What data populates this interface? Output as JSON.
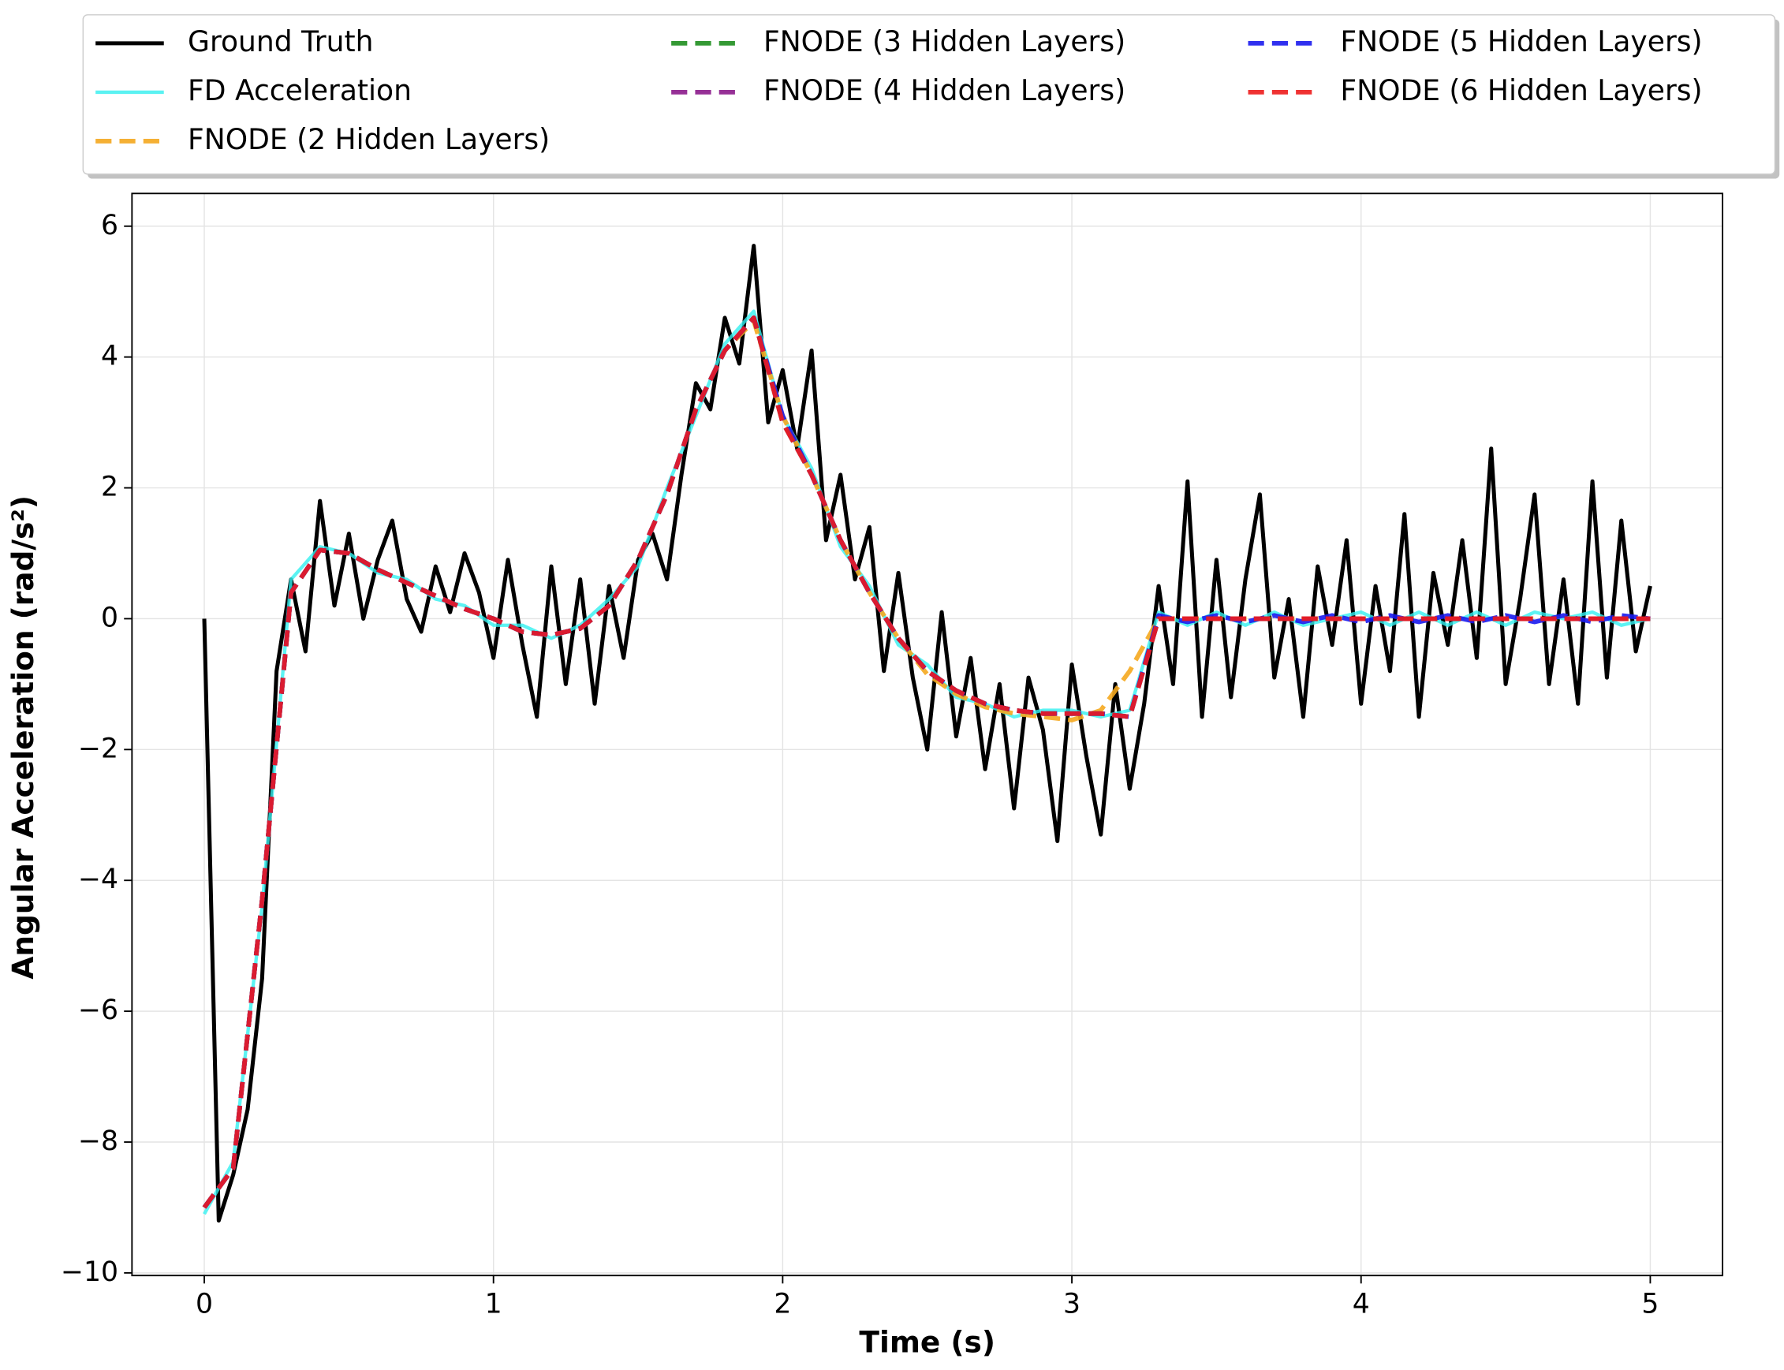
{
  "chart_data": {
    "type": "line",
    "xlabel": "Time (s)",
    "ylabel": "Angular Acceleration (rad/s²)",
    "xlim": [
      -0.25,
      5.25
    ],
    "ylim": [
      -10.04,
      6.5
    ],
    "xticks": [
      0,
      1,
      2,
      3,
      4,
      5
    ],
    "yticks": [
      {
        "value": -10,
        "label": "−10"
      },
      {
        "value": -8,
        "label": "−8"
      },
      {
        "value": -6,
        "label": "−6"
      },
      {
        "value": -4,
        "label": "−4"
      },
      {
        "value": -2,
        "label": "−2"
      },
      0,
      2,
      4,
      6
    ],
    "grid": true,
    "series": [
      {
        "name": "Ground Truth",
        "color": "#000000",
        "linestyle": "solid",
        "x": [
          0,
          0.05,
          0.1,
          0.15,
          0.2,
          0.25,
          0.3,
          0.35,
          0.4,
          0.45,
          0.5,
          0.55,
          0.6,
          0.65,
          0.7,
          0.75,
          0.8,
          0.85,
          0.9,
          0.95,
          1,
          1.05,
          1.1,
          1.15,
          1.2,
          1.25,
          1.3,
          1.35,
          1.4,
          1.45,
          1.5,
          1.55,
          1.6,
          1.65,
          1.7,
          1.75,
          1.8,
          1.85,
          1.9,
          1.95,
          2,
          2.05,
          2.1,
          2.15,
          2.2,
          2.25,
          2.3,
          2.35,
          2.4,
          2.45,
          2.5,
          2.55,
          2.6,
          2.65,
          2.7,
          2.75,
          2.8,
          2.85,
          2.9,
          2.95,
          3,
          3.05,
          3.1,
          3.15,
          3.2,
          3.25,
          3.3,
          3.35,
          3.4,
          3.45,
          3.5,
          3.55,
          3.6,
          3.65,
          3.7,
          3.75,
          3.8,
          3.85,
          3.9,
          3.95,
          4,
          4.05,
          4.1,
          4.15,
          4.2,
          4.25,
          4.3,
          4.35,
          4.4,
          4.45,
          4.5,
          4.55,
          4.6,
          4.65,
          4.7,
          4.75,
          4.8,
          4.85,
          4.9,
          4.95,
          5
        ],
        "values": [
          0,
          -9.2,
          -8.5,
          -7.5,
          -5.5,
          -0.8,
          0.6,
          -0.5,
          1.8,
          0.2,
          1.3,
          0,
          0.9,
          1.5,
          0.3,
          -0.2,
          0.8,
          0.1,
          1,
          0.4,
          -0.6,
          0.9,
          -0.4,
          -1.5,
          0.8,
          -1,
          0.6,
          -1.3,
          0.5,
          -0.6,
          0.9,
          1.3,
          0.6,
          2.2,
          3.6,
          3.2,
          4.6,
          3.9,
          5.7,
          3,
          3.8,
          2.6,
          4.1,
          1.2,
          2.2,
          0.6,
          1.4,
          -0.8,
          0.7,
          -0.9,
          -2,
          0.1,
          -1.8,
          -0.6,
          -2.3,
          -1,
          -2.9,
          -0.9,
          -1.7,
          -3.4,
          -0.7,
          -2.1,
          -3.3,
          -1,
          -2.6,
          -1.3,
          0.5,
          -1,
          2.1,
          -1.5,
          0.9,
          -1.2,
          0.6,
          1.9,
          -0.9,
          0.3,
          -1.5,
          0.8,
          -0.4,
          1.2,
          -1.3,
          0.5,
          -0.8,
          1.6,
          -1.5,
          0.7,
          -0.4,
          1.2,
          -0.6,
          2.6,
          -1,
          0.3,
          1.9,
          -1,
          0.6,
          -1.3,
          2.1,
          -0.9,
          1.5,
          -0.5,
          0.5
        ]
      },
      {
        "name": "FD Acceleration",
        "color": "#33f0f0",
        "linestyle": "solid",
        "x": [
          0,
          0.1,
          0.2,
          0.3,
          0.4,
          0.5,
          0.6,
          0.7,
          0.8,
          0.9,
          1,
          1.1,
          1.2,
          1.3,
          1.4,
          1.5,
          1.6,
          1.7,
          1.8,
          1.9,
          2,
          2.1,
          2.2,
          2.3,
          2.4,
          2.5,
          2.6,
          2.7,
          2.8,
          2.9,
          3,
          3.1,
          3.2,
          3.3,
          3.4,
          3.5,
          3.6,
          3.7,
          3.8,
          3.9,
          4,
          4.1,
          4.2,
          4.3,
          4.4,
          4.5,
          4.6,
          4.7,
          4.8,
          4.9,
          5
        ],
        "values": [
          -9.1,
          -8.3,
          -4.4,
          0.6,
          1.1,
          1,
          0.7,
          0.6,
          0.3,
          0.2,
          -0.1,
          -0.1,
          -0.3,
          -0.1,
          0.3,
          0.8,
          2,
          3.1,
          4.2,
          4.7,
          3.1,
          2.3,
          1.1,
          0.5,
          -0.4,
          -0.7,
          -1.2,
          -1.3,
          -1.5,
          -1.4,
          -1.4,
          -1.5,
          -1.4,
          0.1,
          -0.1,
          0.1,
          -0.1,
          0.1,
          -0.1,
          0,
          0.1,
          -0.1,
          0.1,
          -0.1,
          0.1,
          -0.1,
          0.1,
          0,
          0.1,
          -0.1,
          0
        ]
      },
      {
        "name": "FNODE (2 Hidden Layers)",
        "color": "#f5a81f",
        "linestyle": "dashed",
        "x": [
          0,
          0.1,
          0.2,
          0.3,
          0.4,
          0.5,
          0.6,
          0.7,
          0.8,
          0.9,
          1,
          1.1,
          1.2,
          1.3,
          1.4,
          1.5,
          1.6,
          1.7,
          1.8,
          1.9,
          2,
          2.1,
          2.2,
          2.3,
          2.4,
          2.5,
          2.6,
          2.7,
          2.8,
          2.9,
          3,
          3.1,
          3.2,
          3.3,
          3.4,
          3.5,
          3.6,
          3.7,
          3.8,
          3.9,
          4,
          4.1,
          4.2,
          4.3,
          4.4,
          4.5,
          4.6,
          4.7,
          4.8,
          4.9,
          5
        ],
        "values": [
          -9,
          -8.4,
          -4.3,
          0.4,
          1.05,
          1,
          0.75,
          0.55,
          0.35,
          0.15,
          0,
          -0.2,
          -0.25,
          -0.15,
          0.2,
          0.9,
          1.9,
          3.2,
          4.1,
          4.55,
          3.1,
          2.2,
          1.2,
          0.4,
          -0.3,
          -0.85,
          -1.15,
          -1.35,
          -1.45,
          -1.5,
          -1.55,
          -1.4,
          -0.8,
          0,
          0,
          0,
          0,
          0,
          0,
          0,
          0,
          0,
          0,
          0,
          0,
          0,
          0,
          0,
          0,
          0,
          0
        ]
      },
      {
        "name": "FNODE (3 Hidden Layers)",
        "color": "#1f8f1f",
        "linestyle": "dashed",
        "x": [
          0,
          0.1,
          0.2,
          0.3,
          0.4,
          0.5,
          0.6,
          0.7,
          0.8,
          0.9,
          1,
          1.1,
          1.2,
          1.3,
          1.4,
          1.5,
          1.6,
          1.7,
          1.8,
          1.9,
          2,
          2.1,
          2.2,
          2.3,
          2.4,
          2.5,
          2.6,
          2.7,
          2.8,
          2.9,
          3,
          3.1,
          3.2,
          3.3,
          3.4,
          3.5,
          3.6,
          3.7,
          3.8,
          3.9,
          4,
          4.1,
          4.2,
          4.3,
          4.4,
          4.5,
          4.6,
          4.7,
          4.8,
          4.9,
          5
        ],
        "values": [
          -9,
          -8.4,
          -4.3,
          0.4,
          1.05,
          1,
          0.75,
          0.55,
          0.35,
          0.15,
          0,
          -0.2,
          -0.25,
          -0.15,
          0.2,
          0.9,
          1.9,
          3.2,
          4.1,
          4.6,
          3,
          2.2,
          1.2,
          0.4,
          -0.3,
          -0.8,
          -1.1,
          -1.3,
          -1.4,
          -1.45,
          -1.45,
          -1.45,
          -1.5,
          0,
          0,
          0,
          0,
          0,
          0,
          0,
          0,
          0,
          0,
          0,
          0,
          0,
          0,
          0,
          0,
          0,
          0
        ]
      },
      {
        "name": "FNODE (4 Hidden Layers)",
        "color": "#8b1a8b",
        "linestyle": "dashed",
        "x": [
          0,
          0.1,
          0.2,
          0.3,
          0.4,
          0.5,
          0.6,
          0.7,
          0.8,
          0.9,
          1,
          1.1,
          1.2,
          1.3,
          1.4,
          1.5,
          1.6,
          1.7,
          1.8,
          1.9,
          2,
          2.1,
          2.2,
          2.3,
          2.4,
          2.5,
          2.6,
          2.7,
          2.8,
          2.9,
          3,
          3.1,
          3.2,
          3.3,
          3.4,
          3.5,
          3.6,
          3.7,
          3.8,
          3.9,
          4,
          4.1,
          4.2,
          4.3,
          4.4,
          4.5,
          4.6,
          4.7,
          4.8,
          4.9,
          5
        ],
        "values": [
          -9,
          -8.4,
          -4.3,
          0.4,
          1.05,
          1,
          0.75,
          0.55,
          0.35,
          0.15,
          0,
          -0.2,
          -0.25,
          -0.15,
          0.2,
          0.9,
          1.9,
          3.2,
          4.1,
          4.6,
          3,
          2.2,
          1.2,
          0.4,
          -0.3,
          -0.8,
          -1.1,
          -1.3,
          -1.4,
          -1.45,
          -1.45,
          -1.45,
          -1.5,
          0,
          0,
          0,
          0,
          0,
          0,
          0,
          0,
          0,
          0,
          0,
          0,
          0,
          0,
          0,
          0,
          0,
          0
        ]
      },
      {
        "name": "FNODE (5 Hidden Layers)",
        "color": "#1a1aee",
        "linestyle": "dashed",
        "x": [
          0,
          0.1,
          0.2,
          0.3,
          0.4,
          0.5,
          0.6,
          0.7,
          0.8,
          0.9,
          1,
          1.1,
          1.2,
          1.3,
          1.4,
          1.5,
          1.6,
          1.7,
          1.8,
          1.9,
          2,
          2.1,
          2.2,
          2.3,
          2.4,
          2.5,
          2.6,
          2.7,
          2.8,
          2.9,
          3,
          3.1,
          3.2,
          3.3,
          3.4,
          3.5,
          3.6,
          3.7,
          3.8,
          3.9,
          4,
          4.1,
          4.2,
          4.3,
          4.4,
          4.5,
          4.6,
          4.7,
          4.8,
          4.9,
          5
        ],
        "values": [
          -9,
          -8.4,
          -4.3,
          0.4,
          1.05,
          1,
          0.75,
          0.55,
          0.35,
          0.15,
          0,
          -0.2,
          -0.25,
          -0.15,
          0.2,
          0.9,
          1.9,
          3.2,
          4.1,
          4.6,
          3.1,
          2.2,
          1.2,
          0.4,
          -0.3,
          -0.8,
          -1.1,
          -1.3,
          -1.4,
          -1.45,
          -1.45,
          -1.45,
          -1.5,
          0.05,
          -0.05,
          0.05,
          -0.05,
          0.05,
          -0.05,
          0.05,
          -0.05,
          0.05,
          -0.05,
          0.05,
          -0.05,
          0.05,
          -0.05,
          0.05,
          -0.05,
          0.05,
          0
        ]
      },
      {
        "name": "FNODE (6 Hidden Layers)",
        "color": "#ee1c1c",
        "linestyle": "dashed",
        "x": [
          0,
          0.1,
          0.2,
          0.3,
          0.4,
          0.5,
          0.6,
          0.7,
          0.8,
          0.9,
          1,
          1.1,
          1.2,
          1.3,
          1.4,
          1.5,
          1.6,
          1.7,
          1.8,
          1.9,
          2,
          2.1,
          2.2,
          2.3,
          2.4,
          2.5,
          2.6,
          2.7,
          2.8,
          2.9,
          3,
          3.1,
          3.2,
          3.3,
          3.4,
          3.5,
          3.6,
          3.7,
          3.8,
          3.9,
          4,
          4.1,
          4.2,
          4.3,
          4.4,
          4.5,
          4.6,
          4.7,
          4.8,
          4.9,
          5
        ],
        "values": [
          -9,
          -8.4,
          -4.3,
          0.4,
          1.05,
          1,
          0.75,
          0.55,
          0.35,
          0.15,
          0,
          -0.2,
          -0.25,
          -0.15,
          0.2,
          0.9,
          1.9,
          3.2,
          4.1,
          4.6,
          3,
          2.2,
          1.2,
          0.4,
          -0.3,
          -0.8,
          -1.1,
          -1.3,
          -1.4,
          -1.45,
          -1.45,
          -1.45,
          -1.5,
          0,
          0,
          0,
          0,
          0,
          0,
          0,
          0,
          0,
          0,
          0,
          0,
          0,
          0,
          0,
          0,
          0,
          0
        ]
      }
    ]
  }
}
